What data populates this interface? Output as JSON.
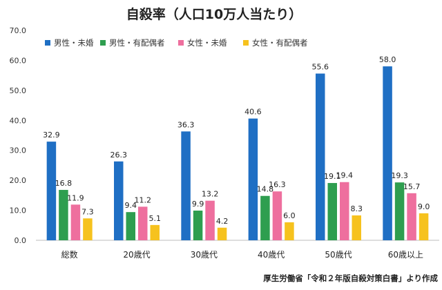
{
  "chart_data": {
    "type": "bar",
    "title": "自殺率（人口10万人当たり）",
    "xlabel": "",
    "ylabel": "",
    "ylim": [
      0,
      70
    ],
    "yticks": [
      "0.0",
      "10.0",
      "20.0",
      "30.0",
      "40.0",
      "50.0",
      "60.0",
      "70.0"
    ],
    "grid": false,
    "legend_position": "top",
    "categories": [
      "総数",
      "20歳代",
      "30歳代",
      "40歳代",
      "50歳代",
      "60歳以上"
    ],
    "series": [
      {
        "name": "男性・未婚",
        "color": "#1f6fc4",
        "values": [
          32.9,
          26.3,
          36.3,
          40.6,
          55.6,
          58.0
        ]
      },
      {
        "name": "男性・有配偶者",
        "color": "#2e9e4f",
        "values": [
          16.8,
          9.4,
          9.9,
          14.8,
          19.1,
          19.3
        ]
      },
      {
        "name": "女性・未婚",
        "color": "#ee6f9e",
        "values": [
          11.9,
          11.2,
          13.2,
          16.3,
          19.4,
          15.7
        ]
      },
      {
        "name": "女性・有配偶者",
        "color": "#f6c21e",
        "values": [
          7.3,
          5.1,
          4.2,
          6.0,
          8.3,
          9.0
        ]
      }
    ],
    "source_note": "厚生労働省「令和２年版自殺対策白書」より作成"
  }
}
